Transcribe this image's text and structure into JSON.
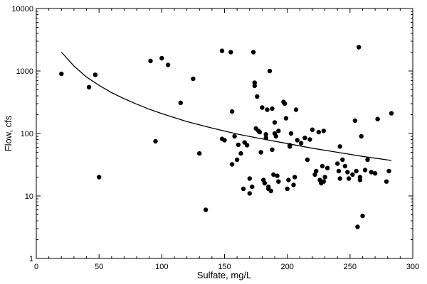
{
  "chart_data": {
    "type": "scatter",
    "xlabel": "Sulfate, mg/L",
    "ylabel": "Flow, cfs",
    "xlim": [
      0,
      300
    ],
    "ylim": [
      1,
      10000
    ],
    "yscale": "log",
    "grid": false,
    "x_ticks": [
      0,
      50,
      100,
      150,
      200,
      250,
      300
    ],
    "x_tick_labels": [
      "0",
      "50",
      "100",
      "150",
      "200",
      "250",
      "300"
    ],
    "y_ticks": [
      1,
      10,
      100,
      1000,
      10000
    ],
    "y_tick_labels": [
      "1",
      "10",
      "100",
      "1000",
      "10000"
    ],
    "colors": {
      "points": "#000000",
      "curve": "#000000",
      "frame": "#000000"
    },
    "series": [
      {
        "kind": "points",
        "points": [
          [
            20,
            900
          ],
          [
            42,
            550
          ],
          [
            47,
            870
          ],
          [
            50,
            20
          ],
          [
            91,
            1450
          ],
          [
            95,
            75
          ],
          [
            100,
            1600
          ],
          [
            105,
            1250
          ],
          [
            115,
            310
          ],
          [
            125,
            750
          ],
          [
            130,
            48
          ],
          [
            135,
            6
          ],
          [
            148,
            2100
          ],
          [
            148,
            82
          ],
          [
            150,
            78
          ],
          [
            155,
            2000
          ],
          [
            156,
            225
          ],
          [
            156,
            32
          ],
          [
            158,
            90
          ],
          [
            160,
            38
          ],
          [
            161,
            66
          ],
          [
            163,
            48
          ],
          [
            165,
            13
          ],
          [
            166,
            72
          ],
          [
            168,
            65
          ],
          [
            170,
            19
          ],
          [
            170,
            11
          ],
          [
            172,
            14
          ],
          [
            173,
            2000
          ],
          [
            174,
            650
          ],
          [
            174,
            580
          ],
          [
            175,
            120
          ],
          [
            176,
            390
          ],
          [
            177,
            110
          ],
          [
            178,
            105
          ],
          [
            179,
            50
          ],
          [
            180,
            260
          ],
          [
            181,
            18
          ],
          [
            182,
            16
          ],
          [
            183,
            97
          ],
          [
            183,
            85
          ],
          [
            184,
            240
          ],
          [
            185,
            14
          ],
          [
            185,
            13
          ],
          [
            186,
            1000
          ],
          [
            187,
            12
          ],
          [
            188,
            250
          ],
          [
            188,
            55
          ],
          [
            189,
            22
          ],
          [
            190,
            150
          ],
          [
            190,
            100
          ],
          [
            191,
            90
          ],
          [
            192,
            21
          ],
          [
            193,
            17
          ],
          [
            193,
            110
          ],
          [
            197,
            320
          ],
          [
            198,
            300
          ],
          [
            199,
            175
          ],
          [
            200,
            13
          ],
          [
            201,
            18
          ],
          [
            202,
            65
          ],
          [
            202,
            62
          ],
          [
            203,
            100
          ],
          [
            205,
            15
          ],
          [
            206,
            20
          ],
          [
            207,
            240
          ],
          [
            208,
            78
          ],
          [
            211,
            70
          ],
          [
            214,
            85
          ],
          [
            216,
            38
          ],
          [
            218,
            80
          ],
          [
            220,
            115
          ],
          [
            222,
            22
          ],
          [
            223,
            25
          ],
          [
            225,
            105
          ],
          [
            226,
            18
          ],
          [
            227,
            16
          ],
          [
            228,
            30
          ],
          [
            229,
            110
          ],
          [
            229,
            17
          ],
          [
            230,
            20
          ],
          [
            232,
            28
          ],
          [
            240,
            33
          ],
          [
            241,
            25
          ],
          [
            242,
            19
          ],
          [
            242,
            62
          ],
          [
            244,
            38
          ],
          [
            246,
            30
          ],
          [
            248,
            24
          ],
          [
            249,
            19
          ],
          [
            252,
            22
          ],
          [
            254,
            160
          ],
          [
            255,
            25
          ],
          [
            256,
            3.2
          ],
          [
            257,
            2400
          ],
          [
            258,
            20
          ],
          [
            258,
            18
          ],
          [
            259,
            90
          ],
          [
            260,
            4.8
          ],
          [
            262,
            26
          ],
          [
            264,
            38
          ],
          [
            267,
            24
          ],
          [
            270,
            23
          ],
          [
            272,
            170
          ],
          [
            279,
            17
          ],
          [
            281,
            25
          ],
          [
            283,
            210
          ]
        ]
      },
      {
        "kind": "curve",
        "points": [
          [
            20,
            2000
          ],
          [
            30,
            1200
          ],
          [
            40,
            800
          ],
          [
            50,
            590
          ],
          [
            60,
            450
          ],
          [
            70,
            360
          ],
          [
            80,
            295
          ],
          [
            90,
            245
          ],
          [
            100,
            208
          ],
          [
            120,
            155
          ],
          [
            140,
            122
          ],
          [
            160,
            98
          ],
          [
            180,
            82
          ],
          [
            200,
            69
          ],
          [
            220,
            58
          ],
          [
            240,
            50
          ],
          [
            260,
            43
          ],
          [
            283,
            37
          ]
        ]
      }
    ]
  }
}
